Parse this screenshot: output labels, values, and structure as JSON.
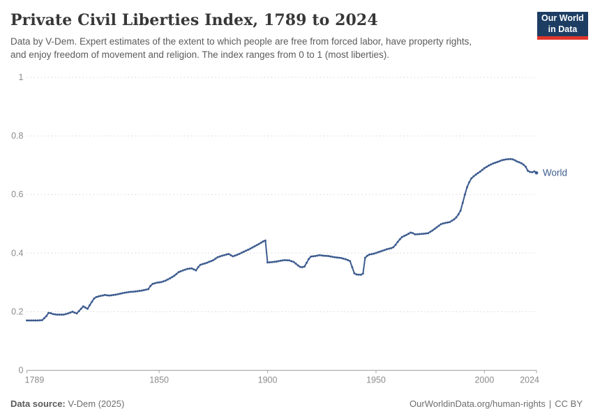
{
  "header": {
    "title": "Private Civil Liberties Index, 1789 to 2024",
    "subtitle_line1": "Data by V-Dem. Expert estimates of the extent to which people are free from forced labor, have property rights,",
    "subtitle_line2": "and enjoy freedom of movement and religion. The index ranges from 0 to 1 (most liberties)."
  },
  "logo": {
    "line1": "Our World",
    "line2": "in Data",
    "bg_color": "#1d3d63",
    "accent_color": "#e0352b"
  },
  "footer": {
    "source_label": "Data source:",
    "source_value": "V-Dem (2025)",
    "url": "OurWorldinData.org/human-rights",
    "separator": "|",
    "license": "CC BY"
  },
  "chart_data": {
    "type": "line",
    "title": "Private Civil Liberties Index, 1789 to 2024",
    "xlabel": "",
    "ylabel": "",
    "xlim": [
      1789,
      2024
    ],
    "ylim": [
      0,
      1
    ],
    "grid": "horizontal-dashed",
    "legend_position": "end-of-line-label",
    "x_ticks": [
      {
        "v": 1789,
        "label": "1789"
      },
      {
        "v": 1850,
        "label": "1850"
      },
      {
        "v": 1900,
        "label": "1900"
      },
      {
        "v": 1950,
        "label": "1950"
      },
      {
        "v": 2000,
        "label": "2000"
      },
      {
        "v": 2024,
        "label": "2024"
      }
    ],
    "y_ticks": [
      {
        "v": 0,
        "label": "0"
      },
      {
        "v": 0.2,
        "label": "0.2"
      },
      {
        "v": 0.4,
        "label": "0.4"
      },
      {
        "v": 0.6,
        "label": "0.6"
      },
      {
        "v": 0.8,
        "label": "0.8"
      },
      {
        "v": 1,
        "label": "1"
      }
    ],
    "series": [
      {
        "name": "World",
        "color": "#3d5c8f",
        "points": [
          [
            1789,
            0.17
          ],
          [
            1794,
            0.17
          ],
          [
            1796,
            0.171
          ],
          [
            1798,
            0.185
          ],
          [
            1799,
            0.196
          ],
          [
            1800,
            0.195
          ],
          [
            1801,
            0.192
          ],
          [
            1803,
            0.19
          ],
          [
            1806,
            0.19
          ],
          [
            1808,
            0.194
          ],
          [
            1810,
            0.2
          ],
          [
            1811,
            0.197
          ],
          [
            1812,
            0.194
          ],
          [
            1814,
            0.21
          ],
          [
            1815,
            0.218
          ],
          [
            1816,
            0.214
          ],
          [
            1817,
            0.21
          ],
          [
            1818,
            0.222
          ],
          [
            1819,
            0.234
          ],
          [
            1820,
            0.245
          ],
          [
            1821,
            0.25
          ],
          [
            1823,
            0.254
          ],
          [
            1825,
            0.257
          ],
          [
            1827,
            0.255
          ],
          [
            1830,
            0.258
          ],
          [
            1833,
            0.263
          ],
          [
            1836,
            0.267
          ],
          [
            1839,
            0.269
          ],
          [
            1842,
            0.272
          ],
          [
            1845,
            0.277
          ],
          [
            1846,
            0.288
          ],
          [
            1847,
            0.295
          ],
          [
            1849,
            0.299
          ],
          [
            1851,
            0.301
          ],
          [
            1853,
            0.306
          ],
          [
            1855,
            0.314
          ],
          [
            1857,
            0.323
          ],
          [
            1859,
            0.335
          ],
          [
            1861,
            0.341
          ],
          [
            1863,
            0.346
          ],
          [
            1865,
            0.348
          ],
          [
            1866,
            0.344
          ],
          [
            1867,
            0.341
          ],
          [
            1868,
            0.352
          ],
          [
            1869,
            0.36
          ],
          [
            1872,
            0.367
          ],
          [
            1875,
            0.376
          ],
          [
            1876,
            0.381
          ],
          [
            1877,
            0.386
          ],
          [
            1879,
            0.391
          ],
          [
            1881,
            0.395
          ],
          [
            1882,
            0.397
          ],
          [
            1883,
            0.393
          ],
          [
            1884,
            0.389
          ],
          [
            1886,
            0.394
          ],
          [
            1888,
            0.401
          ],
          [
            1890,
            0.408
          ],
          [
            1892,
            0.415
          ],
          [
            1894,
            0.423
          ],
          [
            1896,
            0.431
          ],
          [
            1898,
            0.44
          ],
          [
            1899,
            0.443
          ],
          [
            1900,
            0.368
          ],
          [
            1902,
            0.369
          ],
          [
            1904,
            0.371
          ],
          [
            1906,
            0.374
          ],
          [
            1908,
            0.376
          ],
          [
            1910,
            0.375
          ],
          [
            1912,
            0.37
          ],
          [
            1914,
            0.358
          ],
          [
            1915,
            0.353
          ],
          [
            1916,
            0.352
          ],
          [
            1917,
            0.354
          ],
          [
            1918,
            0.367
          ],
          [
            1919,
            0.38
          ],
          [
            1920,
            0.388
          ],
          [
            1922,
            0.39
          ],
          [
            1924,
            0.393
          ],
          [
            1926,
            0.391
          ],
          [
            1928,
            0.39
          ],
          [
            1930,
            0.387
          ],
          [
            1932,
            0.385
          ],
          [
            1934,
            0.383
          ],
          [
            1936,
            0.379
          ],
          [
            1938,
            0.373
          ],
          [
            1939,
            0.352
          ],
          [
            1940,
            0.331
          ],
          [
            1941,
            0.327
          ],
          [
            1943,
            0.326
          ],
          [
            1944,
            0.33
          ],
          [
            1945,
            0.384
          ],
          [
            1946,
            0.391
          ],
          [
            1947,
            0.395
          ],
          [
            1949,
            0.398
          ],
          [
            1951,
            0.403
          ],
          [
            1953,
            0.408
          ],
          [
            1955,
            0.413
          ],
          [
            1957,
            0.417
          ],
          [
            1958,
            0.42
          ],
          [
            1959,
            0.428
          ],
          [
            1960,
            0.438
          ],
          [
            1961,
            0.447
          ],
          [
            1962,
            0.455
          ],
          [
            1964,
            0.462
          ],
          [
            1966,
            0.47
          ],
          [
            1967,
            0.468
          ],
          [
            1968,
            0.464
          ],
          [
            1970,
            0.465
          ],
          [
            1972,
            0.466
          ],
          [
            1974,
            0.468
          ],
          [
            1976,
            0.477
          ],
          [
            1978,
            0.488
          ],
          [
            1980,
            0.499
          ],
          [
            1982,
            0.503
          ],
          [
            1984,
            0.506
          ],
          [
            1986,
            0.515
          ],
          [
            1987,
            0.522
          ],
          [
            1988,
            0.532
          ],
          [
            1989,
            0.545
          ],
          [
            1990,
            0.572
          ],
          [
            1991,
            0.6
          ],
          [
            1992,
            0.625
          ],
          [
            1993,
            0.642
          ],
          [
            1994,
            0.655
          ],
          [
            1995,
            0.662
          ],
          [
            1996,
            0.668
          ],
          [
            1998,
            0.678
          ],
          [
            2000,
            0.69
          ],
          [
            2002,
            0.699
          ],
          [
            2004,
            0.706
          ],
          [
            2006,
            0.711
          ],
          [
            2008,
            0.717
          ],
          [
            2010,
            0.72
          ],
          [
            2012,
            0.721
          ],
          [
            2013,
            0.72
          ],
          [
            2014,
            0.717
          ],
          [
            2015,
            0.713
          ],
          [
            2016,
            0.71
          ],
          [
            2017,
            0.707
          ],
          [
            2018,
            0.702
          ],
          [
            2019,
            0.695
          ],
          [
            2020,
            0.681
          ],
          [
            2021,
            0.677
          ],
          [
            2022,
            0.676
          ],
          [
            2023,
            0.679
          ],
          [
            2024,
            0.674
          ]
        ],
        "end_label": "World"
      }
    ],
    "style": {
      "grid_color": "#d5d5d5",
      "axis_color": "#a0a0a0",
      "tick_label_color": "#8b8b8b"
    }
  }
}
